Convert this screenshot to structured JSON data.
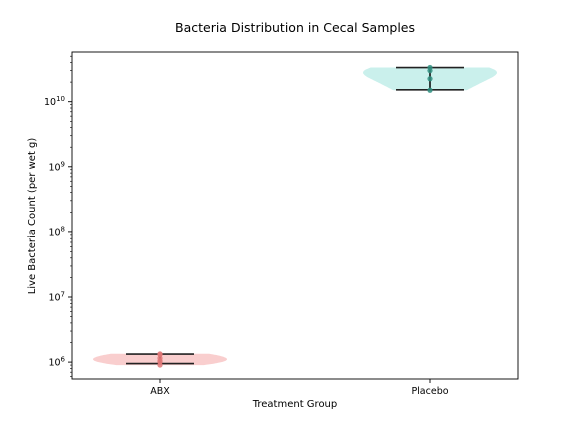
{
  "chart_data": {
    "type": "violin",
    "title": "Bacteria Distribution in Cecal Samples",
    "xlabel": "Treatment Group",
    "ylabel": "Live Bacteria Count (per wet g)",
    "yscale": "log",
    "ylim": [
      550000,
      58000000000
    ],
    "yticks": [
      {
        "value": 1000000,
        "base": "10",
        "exp": "6"
      },
      {
        "value": 10000000,
        "base": "10",
        "exp": "7"
      },
      {
        "value": 100000000,
        "base": "10",
        "exp": "8"
      },
      {
        "value": 1000000000,
        "base": "10",
        "exp": "9"
      },
      {
        "value": 10000000000,
        "base": "10",
        "exp": "10"
      }
    ],
    "categories": [
      "ABX",
      "Placebo"
    ],
    "groups": [
      {
        "label": "ABX",
        "color": "#f4a6a6",
        "point_color": "#e07878",
        "min": 950000,
        "max": 1330000,
        "points": [
          900000,
          1000000,
          1050000,
          1150000,
          1300000,
          1340000
        ]
      },
      {
        "label": "Placebo",
        "color": "#9fe3dc",
        "point_color": "#2f8f80",
        "min": 15200000000,
        "max": 33500000000,
        "points": [
          15000000000,
          22500000000,
          30000000000,
          33500000000
        ]
      }
    ],
    "grid": false,
    "legend": "none"
  }
}
